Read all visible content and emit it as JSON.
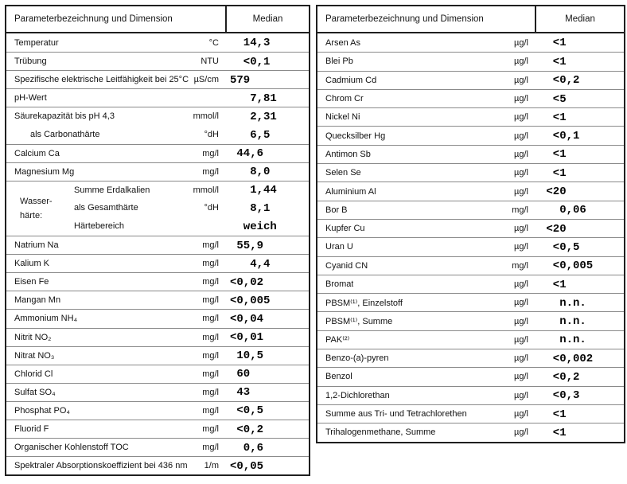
{
  "page": {
    "background": "#ffffff",
    "outer_border_color": "#1f1f1f",
    "row_line_color": "#8a8a8a",
    "value_color": "#050505"
  },
  "left_table": {
    "header": {
      "param": "Parameterbezeichnung und Dimension",
      "median": "Median"
    },
    "group_label": {
      "line1": "Wasser-",
      "line2": "härte:"
    },
    "rows": [
      {
        "label": "Temperatur",
        "unit": "°C",
        "value": "  14,3"
      },
      {
        "label": "Trübung",
        "unit": "NTU",
        "value": "  <0,1"
      },
      {
        "label": "Spezifische elektrische Leitfähigkeit bei 25°C",
        "unit": "µS/cm",
        "value": "579"
      },
      {
        "label": "pH-Wert",
        "unit": "",
        "value": "   7,81"
      },
      {
        "label": "Säurekapazität bis pH 4,3",
        "unit": "mmol/l",
        "value": "   2,31"
      },
      {
        "label": "als Carbonathärte",
        "unit": "°dH",
        "value": "   6,5",
        "indent": 1,
        "no_line": true
      },
      {
        "label": "Calcium Ca",
        "unit": "mg/l",
        "value": " 44,6"
      },
      {
        "label": "Magnesium Mg",
        "unit": "mg/l",
        "value": "   8,0"
      },
      {
        "label": "Summe Erdalkalien",
        "unit": "mmol/l",
        "value": "   1,44",
        "indent": 2
      },
      {
        "label": "als Gesamthärte",
        "unit": "°dH",
        "value": "   8,1",
        "indent": 2,
        "no_line": true
      },
      {
        "label": "Härtebereich",
        "unit": "",
        "value": "  weich",
        "indent": 2,
        "no_line": true
      },
      {
        "label": "Natrium Na",
        "unit": "mg/l",
        "value": " 55,9"
      },
      {
        "label": "Kalium K",
        "unit": "mg/l",
        "value": "   4,4"
      },
      {
        "label": "Eisen Fe",
        "unit": "mg/l",
        "value": "<0,02"
      },
      {
        "label": "Mangan Mn",
        "unit": "mg/l",
        "value": "<0,005"
      },
      {
        "label": "Ammonium NH₄",
        "unit": "mg/l",
        "value": "<0,04"
      },
      {
        "label": "Nitrit NO₂",
        "unit": "mg/l",
        "value": "<0,01"
      },
      {
        "label": "Nitrat NO₃",
        "unit": "mg/l",
        "value": " 10,5"
      },
      {
        "label": "Chlorid Cl",
        "unit": "mg/l",
        "value": " 60"
      },
      {
        "label": "Sulfat SO₄",
        "unit": "mg/l",
        "value": " 43"
      },
      {
        "label": "Phosphat PO₄",
        "unit": "mg/l",
        "value": " <0,5"
      },
      {
        "label": "Fluorid F",
        "unit": "mg/l",
        "value": " <0,2"
      },
      {
        "label": "Organischer Kohlenstoff TOC",
        "unit": "mg/l",
        "value": "  0,6"
      },
      {
        "label": "Spektraler Absorptionskoeffizient bei 436 nm",
        "unit": "1/m",
        "value": "<0,05"
      }
    ]
  },
  "right_table": {
    "header": {
      "param": "Parameterbezeichnung und Dimension",
      "median": "Median"
    },
    "rows": [
      {
        "label": "Arsen As",
        "unit": "µg/l",
        "value": "  <1"
      },
      {
        "label": "Blei Pb",
        "unit": "µg/l",
        "value": "  <1"
      },
      {
        "label": "Cadmium Cd",
        "unit": "µg/l",
        "value": "  <0,2"
      },
      {
        "label": "Chrom Cr",
        "unit": "µg/l",
        "value": "  <5"
      },
      {
        "label": "Nickel Ni",
        "unit": "µg/l",
        "value": "  <1"
      },
      {
        "label": "Quecksilber Hg",
        "unit": "µg/l",
        "value": "  <0,1"
      },
      {
        "label": "Antimon Sb",
        "unit": "µg/l",
        "value": "  <1"
      },
      {
        "label": "Selen Se",
        "unit": "µg/l",
        "value": "  <1"
      },
      {
        "label": "Aluminium Al",
        "unit": "µg/l",
        "value": " <20"
      },
      {
        "label": "Bor B",
        "unit": "mg/l",
        "value": "   0,06"
      },
      {
        "label": "Kupfer Cu",
        "unit": "µg/l",
        "value": " <20"
      },
      {
        "label": "Uran U",
        "unit": "µg/l",
        "value": "  <0,5"
      },
      {
        "label": "Cyanid CN",
        "unit": "mg/l",
        "value": "  <0,005"
      },
      {
        "label": "Bromat",
        "unit": "µg/l",
        "value": "  <1"
      },
      {
        "label": "PBSM⁽¹⁾, Einzelstoff",
        "unit": "µg/l",
        "value": "   n.n."
      },
      {
        "label": "PBSM⁽¹⁾, Summe",
        "unit": "µg/l",
        "value": "   n.n."
      },
      {
        "label": "PAK⁽²⁾",
        "unit": "µg/l",
        "value": "   n.n."
      },
      {
        "label": "Benzo-(a)-pyren",
        "unit": "µg/l",
        "value": "  <0,002"
      },
      {
        "label": "Benzol",
        "unit": "µg/l",
        "value": "  <0,2"
      },
      {
        "label": "1,2-Dichlorethan",
        "unit": "µg/l",
        "value": "  <0,3"
      },
      {
        "label": "Summe aus Tri- und Tetrachlorethen",
        "unit": "µg/l",
        "value": "  <1"
      },
      {
        "label": "Trihalogenmethane, Summe",
        "unit": "µg/l",
        "value": "  <1"
      }
    ]
  }
}
